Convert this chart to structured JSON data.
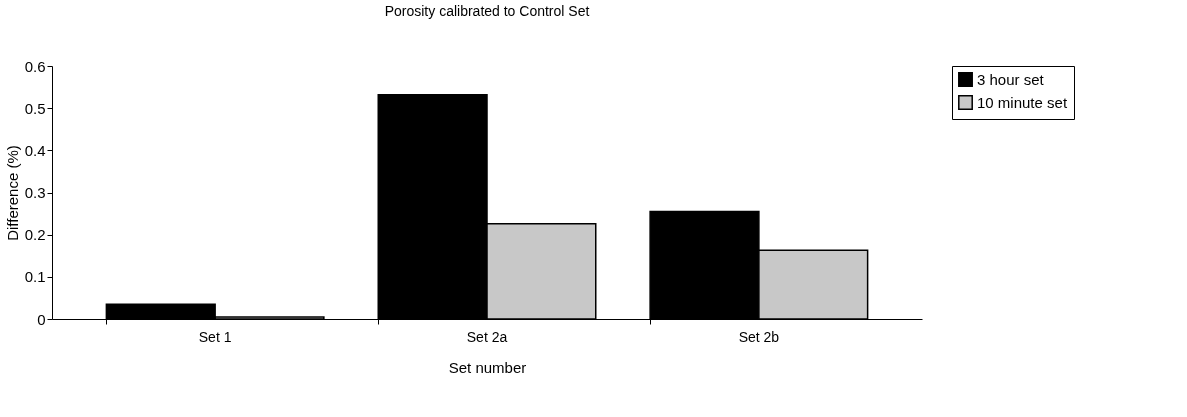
{
  "chart_data": {
    "type": "bar",
    "title": "Porosity calibrated to Control Set",
    "xlabel": "Set number",
    "ylabel": "Difference (%)",
    "categories": [
      "Set 1",
      "Set 2a",
      "Set 2b"
    ],
    "series": [
      {
        "name": "3 hour set",
        "color": "#000000",
        "values": [
          0.035,
          0.532,
          0.255
        ]
      },
      {
        "name": "10 minute set",
        "color": "#c8c8c8",
        "values": [
          0.005,
          0.226,
          0.163
        ]
      }
    ],
    "ylim": [
      0,
      0.6
    ],
    "yticks": [
      0,
      0.1,
      0.2,
      0.3,
      0.4,
      0.5,
      0.6
    ],
    "grid": false,
    "legend": "right"
  }
}
